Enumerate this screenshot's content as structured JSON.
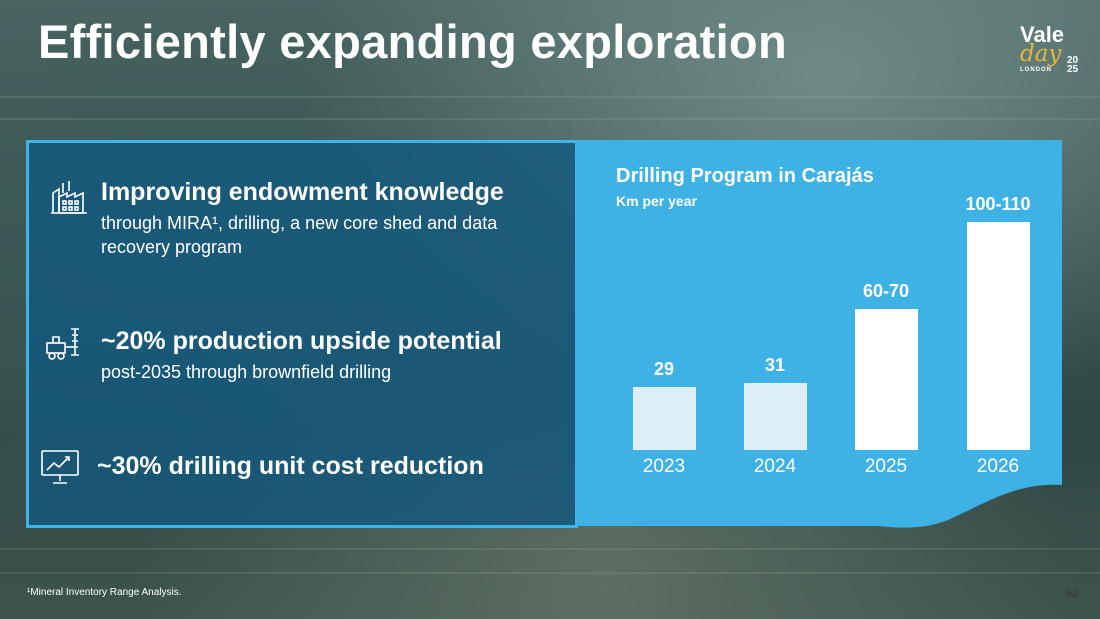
{
  "title": "Efficiently expanding exploration",
  "logo": {
    "name": "Vale",
    "script": "day",
    "city": "LONDON",
    "year_top": "20",
    "year_bottom": "25"
  },
  "items": [
    {
      "icon": "industrial-plant-icon",
      "headline": "Improving endowment knowledge",
      "detail": "through MIRA¹, drilling, a new core shed and data recovery program"
    },
    {
      "icon": "drilling-rig-icon",
      "headline": "~20% production upside potential",
      "detail": "post-2035 through brownfield drilling"
    },
    {
      "icon": "chart-monitor-icon",
      "headline": "~30% drilling unit cost reduction",
      "detail": ""
    }
  ],
  "chart_data": {
    "type": "bar",
    "title": "Drilling Program in Carajás",
    "ylabel": "Km per year",
    "categories": [
      "2023",
      "2024",
      "2025",
      "2026"
    ],
    "values": [
      29,
      31,
      65,
      105
    ],
    "value_labels": [
      "29",
      "31",
      "60-70",
      "100-110"
    ],
    "bar_colors": [
      "#deeef7",
      "#deeef7",
      "#ffffff",
      "#ffffff"
    ],
    "panel_color": "#3eb2e4",
    "ylim": [
      0,
      115
    ]
  },
  "footnote": "¹Mineral Inventory Range Analysis.",
  "page_number": "62"
}
